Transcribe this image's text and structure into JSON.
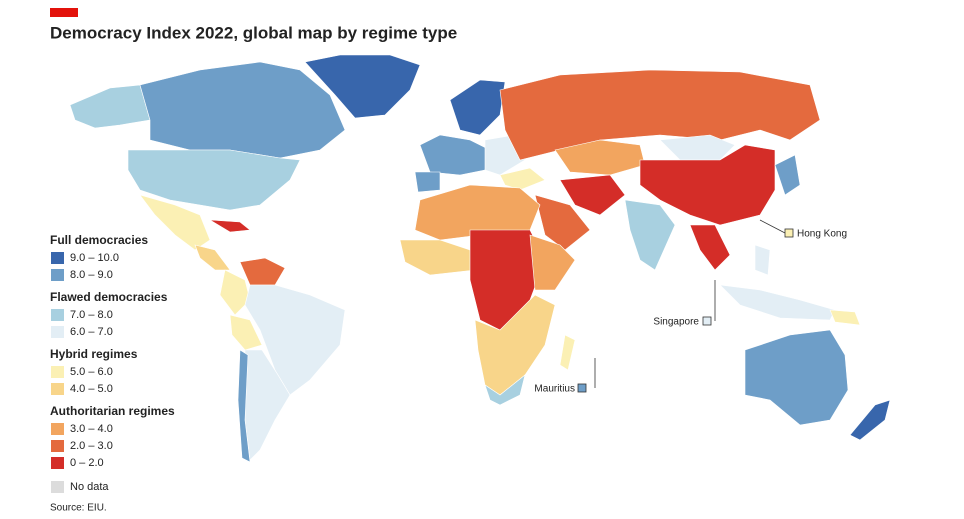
{
  "header": {
    "title": "Democracy Index 2022, global map by regime type"
  },
  "legend": {
    "groups": [
      {
        "title": "Full democracies",
        "items": [
          {
            "label": "9.0 – 10.0",
            "color": "#3866ac"
          },
          {
            "label": "8.0 – 9.0",
            "color": "#6e9ec8"
          }
        ]
      },
      {
        "title": "Flawed democracies",
        "items": [
          {
            "label": "7.0 – 8.0",
            "color": "#a8d0e0"
          },
          {
            "label": "6.0 – 7.0",
            "color": "#e3eef5"
          }
        ]
      },
      {
        "title": "Hybrid regimes",
        "items": [
          {
            "label": "5.0 – 6.0",
            "color": "#fbf0b4"
          },
          {
            "label": "4.0 – 5.0",
            "color": "#f8d58a"
          }
        ]
      },
      {
        "title": "Authoritarian regimes",
        "items": [
          {
            "label": "3.0 – 4.0",
            "color": "#f2a55f"
          },
          {
            "label": "2.0 – 3.0",
            "color": "#e46a3e"
          },
          {
            "label": "0 – 2.0",
            "color": "#d42d28"
          }
        ]
      }
    ],
    "no_data": {
      "label": "No data",
      "color": "#dcdcdc"
    }
  },
  "callouts": [
    "Hong Kong",
    "Singapore",
    "Mauritius"
  ],
  "source": "Source: EIU."
}
